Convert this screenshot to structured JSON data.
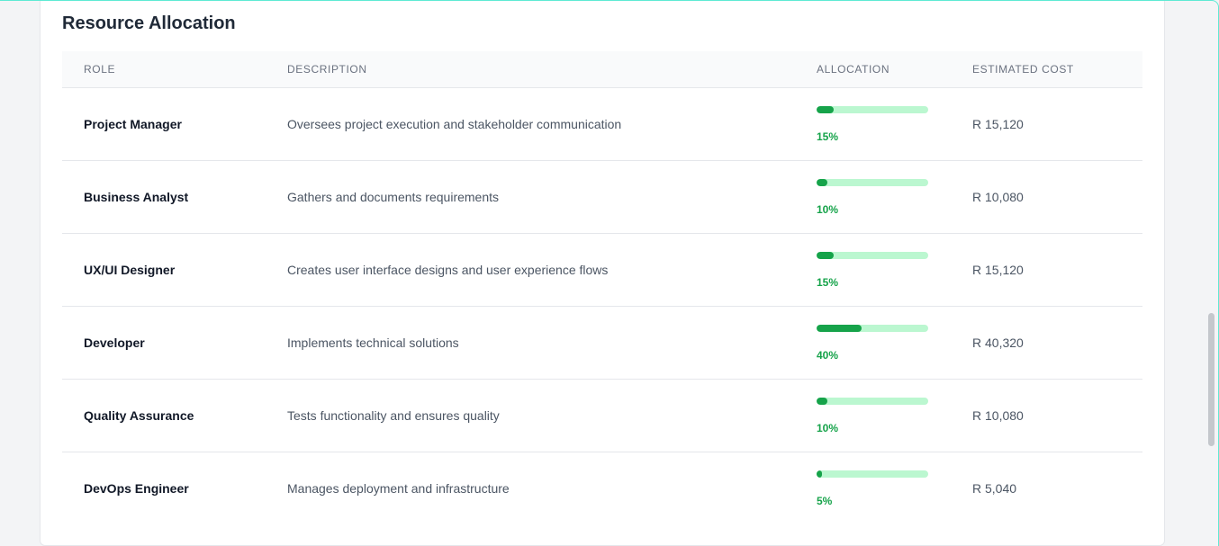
{
  "section": {
    "title": "Resource Allocation"
  },
  "table": {
    "headers": {
      "role": "ROLE",
      "description": "DESCRIPTION",
      "allocation": "ALLOCATION",
      "cost": "ESTIMATED COST"
    },
    "rows": [
      {
        "role": "Project Manager",
        "description": "Oversees project execution and stakeholder communication",
        "allocation_pct": 15,
        "allocation_label": "15%",
        "cost": "R 15,120"
      },
      {
        "role": "Business Analyst",
        "description": "Gathers and documents requirements",
        "allocation_pct": 10,
        "allocation_label": "10%",
        "cost": "R 10,080"
      },
      {
        "role": "UX/UI Designer",
        "description": "Creates user interface designs and user experience flows",
        "allocation_pct": 15,
        "allocation_label": "15%",
        "cost": "R 15,120"
      },
      {
        "role": "Developer",
        "description": "Implements technical solutions",
        "allocation_pct": 40,
        "allocation_label": "40%",
        "cost": "R 40,320"
      },
      {
        "role": "Quality Assurance",
        "description": "Tests functionality and ensures quality",
        "allocation_pct": 10,
        "allocation_label": "10%",
        "cost": "R 10,080"
      },
      {
        "role": "DevOps Engineer",
        "description": "Manages deployment and infrastructure",
        "allocation_pct": 5,
        "allocation_label": "5%",
        "cost": "R 5,040"
      }
    ]
  },
  "colors": {
    "accent": "#16a34a",
    "accent_light": "#bbf7d0"
  }
}
